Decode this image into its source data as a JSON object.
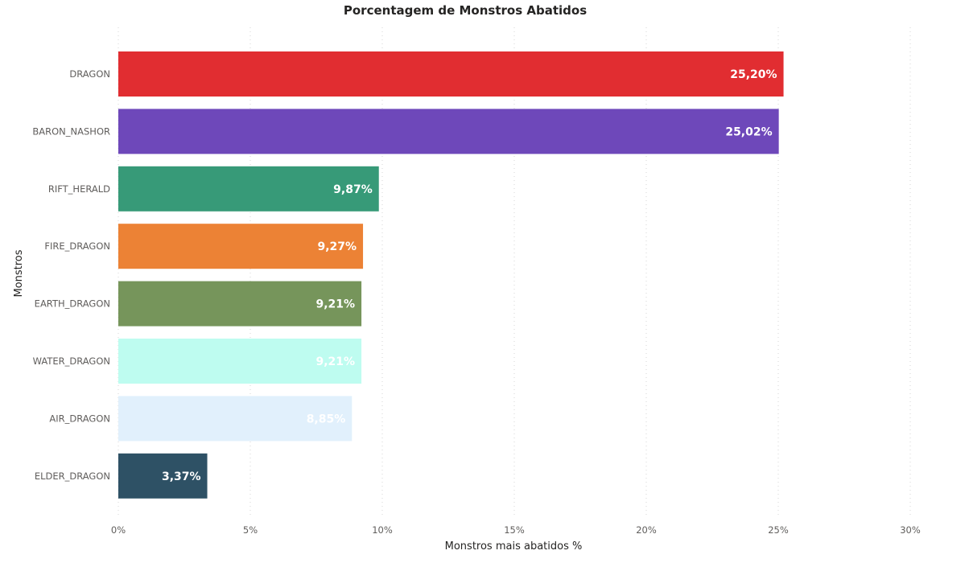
{
  "chart_data": {
    "type": "bar",
    "orientation": "horizontal",
    "title": "Porcentagem de Monstros Abatidos",
    "xlabel": "Monstros mais abatidos %",
    "ylabel": "Monstros",
    "categories": [
      "DRAGON",
      "BARON_NASHOR",
      "RIFT_HERALD",
      "FIRE_DRAGON",
      "EARTH_DRAGON",
      "WATER_DRAGON",
      "AIR_DRAGON",
      "ELDER_DRAGON"
    ],
    "values": [
      25.2,
      25.02,
      9.87,
      9.27,
      9.21,
      9.21,
      8.85,
      3.37
    ],
    "data_labels": [
      "25,20%",
      "25,02%",
      "9,87%",
      "9,27%",
      "9,21%",
      "9,21%",
      "8,85%",
      "3,37%"
    ],
    "colors": [
      "#e12d31",
      "#6e48ba",
      "#379a78",
      "#ec8235",
      "#76955b",
      "#befcf0",
      "#e1f0fc",
      "#2e5165"
    ],
    "xlim": [
      0,
      30
    ],
    "xticks": [
      0,
      5,
      10,
      15,
      20,
      25,
      30
    ],
    "xtick_labels": [
      "0%",
      "5%",
      "10%",
      "15%",
      "20%",
      "25%",
      "30%"
    ],
    "grid": true,
    "legend": "none"
  }
}
